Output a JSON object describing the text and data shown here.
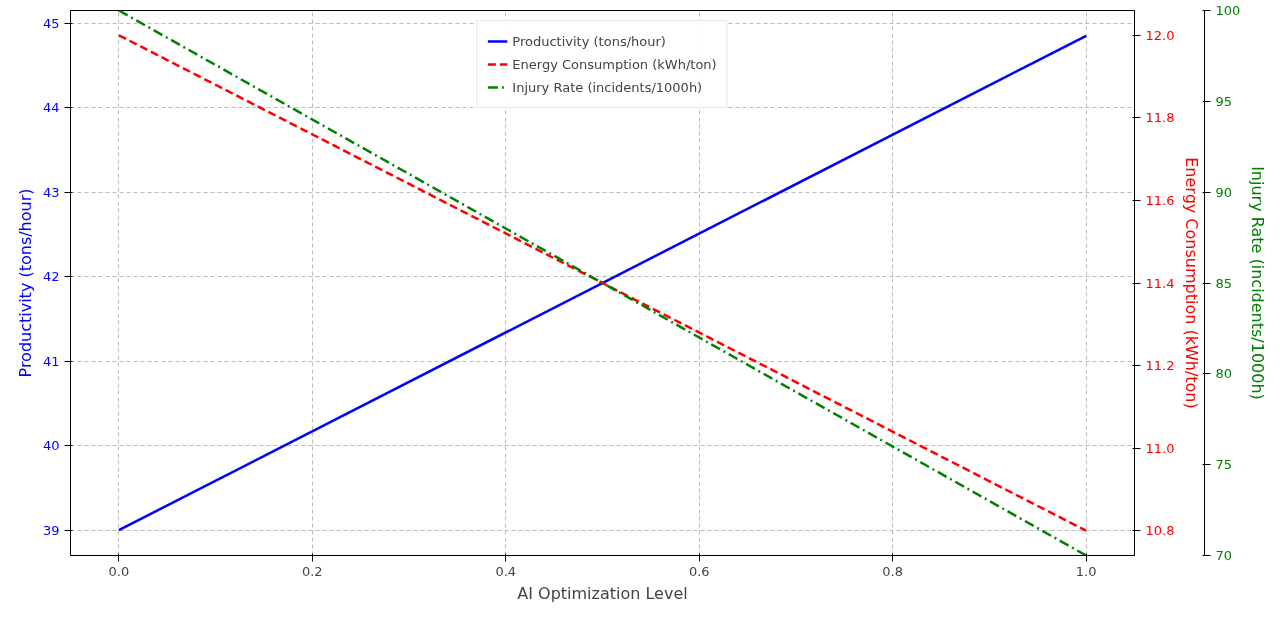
{
  "chart_data": {
    "type": "line",
    "xlabel": "AI Optimization Level",
    "ylabel": "Productivity (tons/hour)",
    "y2label": "Energy Consumption (kWh/ton)",
    "y3label": "Injury Rate (incidents/1000h)",
    "x": [
      0,
      1
    ],
    "series": [
      {
        "name": "Productivity (tons/hour)",
        "color": "#0000ff",
        "values": [
          39,
          44.85
        ],
        "line_style": "solid"
      },
      {
        "name": "Energy Consumption (kWh/ton)",
        "color": "#ff0000",
        "values": [
          12.0,
          10.8
        ],
        "line_style": "dashed",
        "axis": "y2"
      },
      {
        "name": "Injury Rate (incidents/1000h)",
        "color": "#008000",
        "values": [
          100,
          70
        ],
        "line_style": "dashdot",
        "axis": "y3"
      }
    ],
    "xlim": [
      -0.05,
      1.05
    ],
    "xticks": [
      {
        "value": 0,
        "label": "0.0"
      },
      0.2,
      0.4,
      0.6,
      0.8,
      {
        "value": 1,
        "label": "1.0"
      }
    ],
    "ylim": [
      38.7,
      45.15
    ],
    "yticks": [
      39,
      40,
      41,
      42,
      43,
      44,
      45
    ],
    "y2lim": [
      10.74,
      12.06
    ],
    "y2ticks": [
      10.8,
      {
        "value": 11,
        "label": "11.0"
      },
      11.2,
      11.4,
      11.6,
      11.8,
      {
        "value": 12,
        "label": "12.0"
      }
    ],
    "y3lim": [
      70,
      100
    ],
    "y3ticks": [
      70,
      75,
      80,
      85,
      90,
      95,
      100
    ],
    "grid": true,
    "legend": "top"
  }
}
